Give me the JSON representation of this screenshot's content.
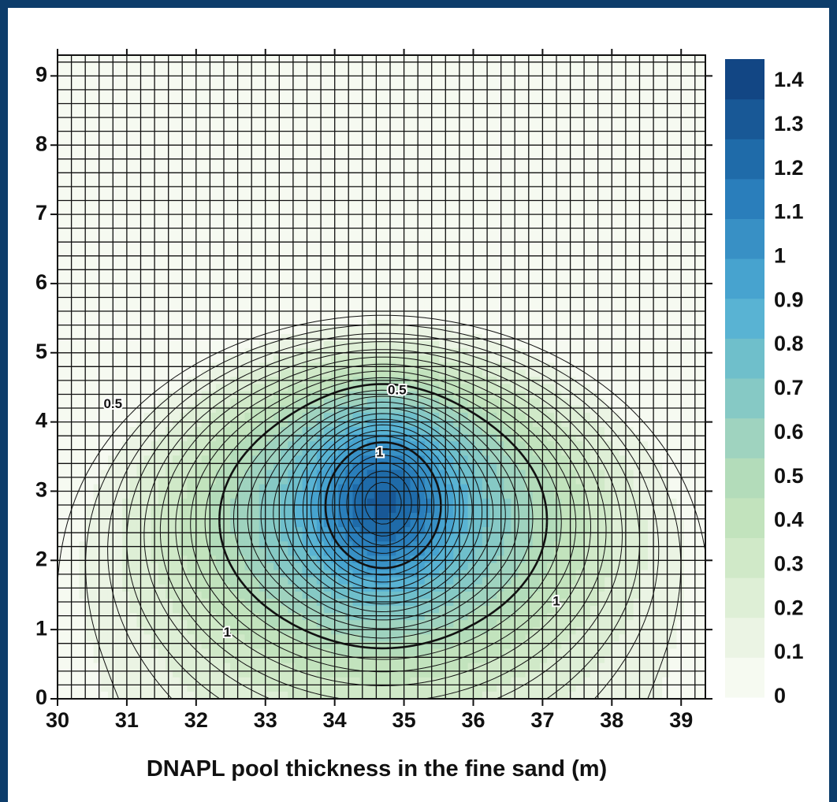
{
  "chart_data": {
    "type": "heatmap",
    "subtype": "filled-contour",
    "title": "",
    "xlabel": "DNAPL pool thickness in the fine sand (m)",
    "ylabel": "",
    "xlim": [
      30,
      39.35
    ],
    "ylim": [
      0,
      9.3
    ],
    "x_ticks": [
      "30",
      "31",
      "32",
      "33",
      "34",
      "35",
      "36",
      "37",
      "38",
      "39"
    ],
    "y_ticks": [
      "0",
      "1",
      "2",
      "3",
      "4",
      "5",
      "6",
      "7",
      "8",
      "9"
    ],
    "grid": true,
    "colorbar": {
      "placement": "right",
      "min": 0,
      "max": 1.45,
      "ticks": [
        "0",
        "0.1",
        "0.2",
        "0.3",
        "0.4",
        "0.5",
        "0.6",
        "0.7",
        "0.8",
        "0.9",
        "1",
        "1.1",
        "1.2",
        "1.3",
        "1.4"
      ],
      "colors": [
        "#f6faf1",
        "#ebf4e4",
        "#deefd6",
        "#d0e9c8",
        "#c2e3bd",
        "#b3dcba",
        "#9fd3bf",
        "#86c9c5",
        "#6fbfcb",
        "#59b3d3",
        "#47a3cf",
        "#3890c5",
        "#2a7ebb",
        "#1f6ba9",
        "#185896",
        "#124684"
      ]
    },
    "peak": {
      "x": 34.7,
      "y": 2.9,
      "value": 1.45
    },
    "contour_labels": [
      {
        "text": "0.5",
        "x": 30.8,
        "y": 4.25
      },
      {
        "text": "0.5",
        "x": 34.9,
        "y": 4.45
      },
      {
        "text": "1",
        "x": 34.65,
        "y": 3.55
      },
      {
        "text": "1",
        "x": 37.2,
        "y": 1.4
      },
      {
        "text": "1",
        "x": 32.45,
        "y": 0.95
      }
    ]
  }
}
